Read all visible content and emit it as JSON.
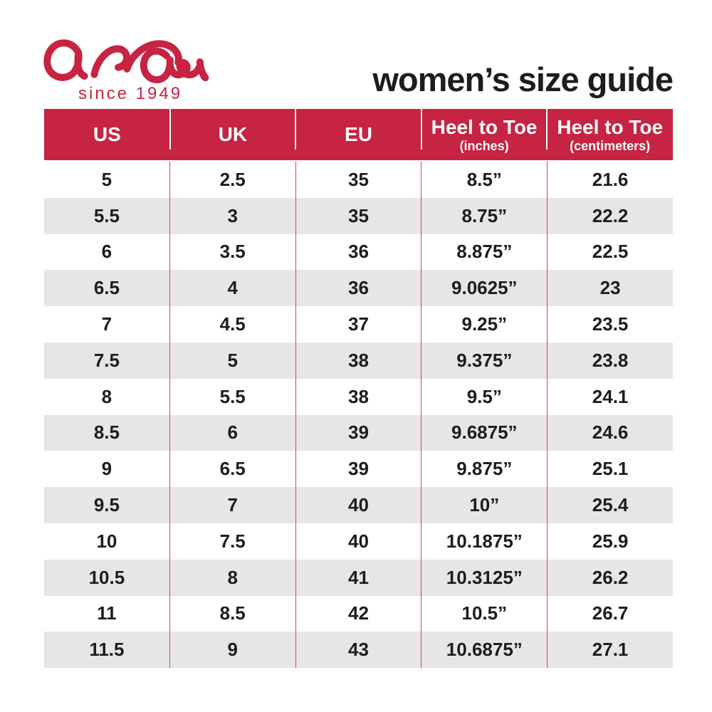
{
  "theme": {
    "brand_red": "#c72342",
    "row_alt_gray": "#e6e6e6",
    "divider_red": "#dc4055",
    "text_black": "#1d1d1b",
    "header_text": "#ffffff"
  },
  "brand": {
    "name": "ara",
    "registered_mark": "®",
    "tagline": "since 1949"
  },
  "header": {
    "title": "women’s size guide"
  },
  "table": {
    "columns": [
      {
        "label": "US",
        "sublabel": ""
      },
      {
        "label": "UK",
        "sublabel": ""
      },
      {
        "label": "EU",
        "sublabel": ""
      },
      {
        "label": "Heel to Toe",
        "sublabel": "(inches)"
      },
      {
        "label": "Heel to Toe",
        "sublabel": "(centimeters)"
      }
    ],
    "rows": [
      [
        "5",
        "2.5",
        "35",
        "8.5”",
        "21.6"
      ],
      [
        "5.5",
        "3",
        "35",
        "8.75”",
        "22.2"
      ],
      [
        "6",
        "3.5",
        "36",
        "8.875”",
        "22.5"
      ],
      [
        "6.5",
        "4",
        "36",
        "9.0625”",
        "23"
      ],
      [
        "7",
        "4.5",
        "37",
        "9.25”",
        "23.5"
      ],
      [
        "7.5",
        "5",
        "38",
        "9.375”",
        "23.8"
      ],
      [
        "8",
        "5.5",
        "38",
        "9.5”",
        "24.1"
      ],
      [
        "8.5",
        "6",
        "39",
        "9.6875”",
        "24.6"
      ],
      [
        "9",
        "6.5",
        "39",
        "9.875”",
        "25.1"
      ],
      [
        "9.5",
        "7",
        "40",
        "10”",
        "25.4"
      ],
      [
        "10",
        "7.5",
        "40",
        "10.1875”",
        "25.9"
      ],
      [
        "10.5",
        "8",
        "41",
        "10.3125”",
        "26.2"
      ],
      [
        "11",
        "8.5",
        "42",
        "10.5”",
        "26.7"
      ],
      [
        "11.5",
        "9",
        "43",
        "10.6875”",
        "27.1"
      ]
    ]
  }
}
